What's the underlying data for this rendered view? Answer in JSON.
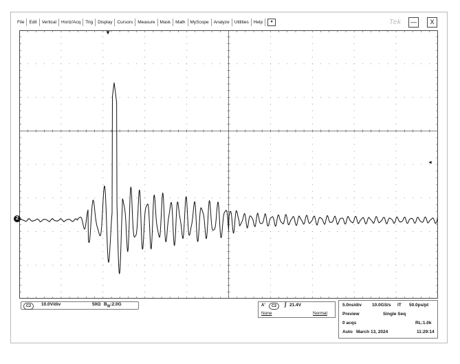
{
  "menu": {
    "items": [
      "File",
      "Edit",
      "Vertical",
      "Horiz/Acq",
      "Trig",
      "Display",
      "Cursors",
      "Measure",
      "Mask",
      "Math",
      "MyScope",
      "Analyze",
      "Utilities",
      "Help"
    ],
    "dropdown_glyph": "▾"
  },
  "brand": "Tek",
  "window": {
    "minimize_glyph": "—",
    "close_glyph": "X"
  },
  "markers": {
    "channel": "2",
    "trigger_pos": "▼",
    "level": "◄"
  },
  "channel": {
    "tag": "C2",
    "scale": "10.0V/div",
    "impedance": "50Ω",
    "bandwidth_prefix": "B",
    "bandwidth_sub": "W",
    "bandwidth_value": ":2.0G"
  },
  "trigger": {
    "mode_tag": "A'",
    "source": "C2",
    "slope_glyph": "∫",
    "level": "21.4V",
    "coupling": "None",
    "type": "Normal"
  },
  "acquisition": {
    "timebase": "5.0ns/div",
    "sample_rate": "10.0GS/s",
    "it": "IT",
    "resolution": "50.0ps/pt",
    "state": "Preview",
    "seq_mode": "Single Seq",
    "acqs": "0 acqs",
    "record_length": "RL:1.0k",
    "run_mode": "Auto",
    "date": "March 13, 2024",
    "time": "11:29:14"
  },
  "colors": {
    "trace": "#111111",
    "grid": "#555555",
    "frame": "#b9b9b9"
  }
}
